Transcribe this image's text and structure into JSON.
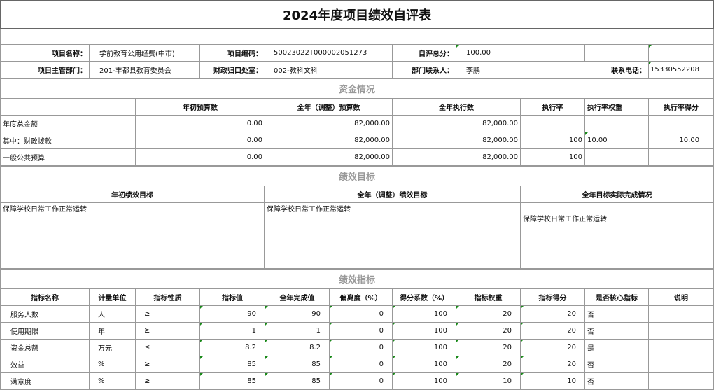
{
  "title": "2024年度项目绩效自评表",
  "info": {
    "project_name_label": "项目名称：",
    "project_name": "学前教育公用经费(中市)",
    "project_code_label": "项目编码：",
    "project_code": "50023022T000002051273",
    "score_label": "自评总分：",
    "score": "100.00",
    "dept_label": "项目主管部门：",
    "dept": "201-丰都县教育委员会",
    "office_label": "财政归口处室：",
    "office": "002-教科文科",
    "contact_label": "部门联系人：",
    "contact": "李鹏",
    "phone_label": "联系电话：",
    "phone": "15330552208"
  },
  "funds": {
    "section": "资金情况",
    "headers": [
      "",
      "年初预算数",
      "全年（调整）预算数",
      "全年执行数",
      "执行率",
      "执行率权重",
      "执行率得分"
    ],
    "rows": [
      [
        "年度总金额",
        "0.00",
        "82,000.00",
        "82,000.00",
        "",
        "",
        ""
      ],
      [
        "其中：财政拨款",
        "0.00",
        "82,000.00",
        "82,000.00",
        "100",
        "10.00",
        "10.00"
      ],
      [
        "一般公共预算",
        "0.00",
        "82,000.00",
        "82,000.00",
        "100",
        "",
        ""
      ]
    ]
  },
  "goals": {
    "section": "绩效目标",
    "headers": [
      "年初绩效目标",
      "全年（调整）绩效目标",
      "全年目标实际完成情况"
    ],
    "values": [
      "保障学校日常工作正常运转",
      "保障学校日常工作正常运转",
      "保障学校日常工作正常运转"
    ]
  },
  "indicators": {
    "section": "绩效指标",
    "headers": [
      "指标名称",
      "计量单位",
      "指标性质",
      "指标值",
      "全年完成值",
      "偏离度（%）",
      "得分系数（%）",
      "指标权重",
      "指标得分",
      "是否核心指标",
      "说明"
    ],
    "rows": [
      [
        "服务人数",
        "人",
        "≥",
        "90",
        "90",
        "0",
        "100",
        "20",
        "20",
        "否",
        ""
      ],
      [
        "使用期限",
        "年",
        "≥",
        "1",
        "1",
        "0",
        "100",
        "20",
        "20",
        "否",
        ""
      ],
      [
        "资金总额",
        "万元",
        "≤",
        "8.2",
        "8.2",
        "0",
        "100",
        "20",
        "20",
        "是",
        ""
      ],
      [
        "效益",
        "%",
        "≥",
        "85",
        "85",
        "0",
        "100",
        "20",
        "20",
        "否",
        ""
      ],
      [
        "满意度",
        "%",
        "≥",
        "85",
        "85",
        "0",
        "100",
        "10",
        "10",
        "否",
        ""
      ]
    ]
  }
}
